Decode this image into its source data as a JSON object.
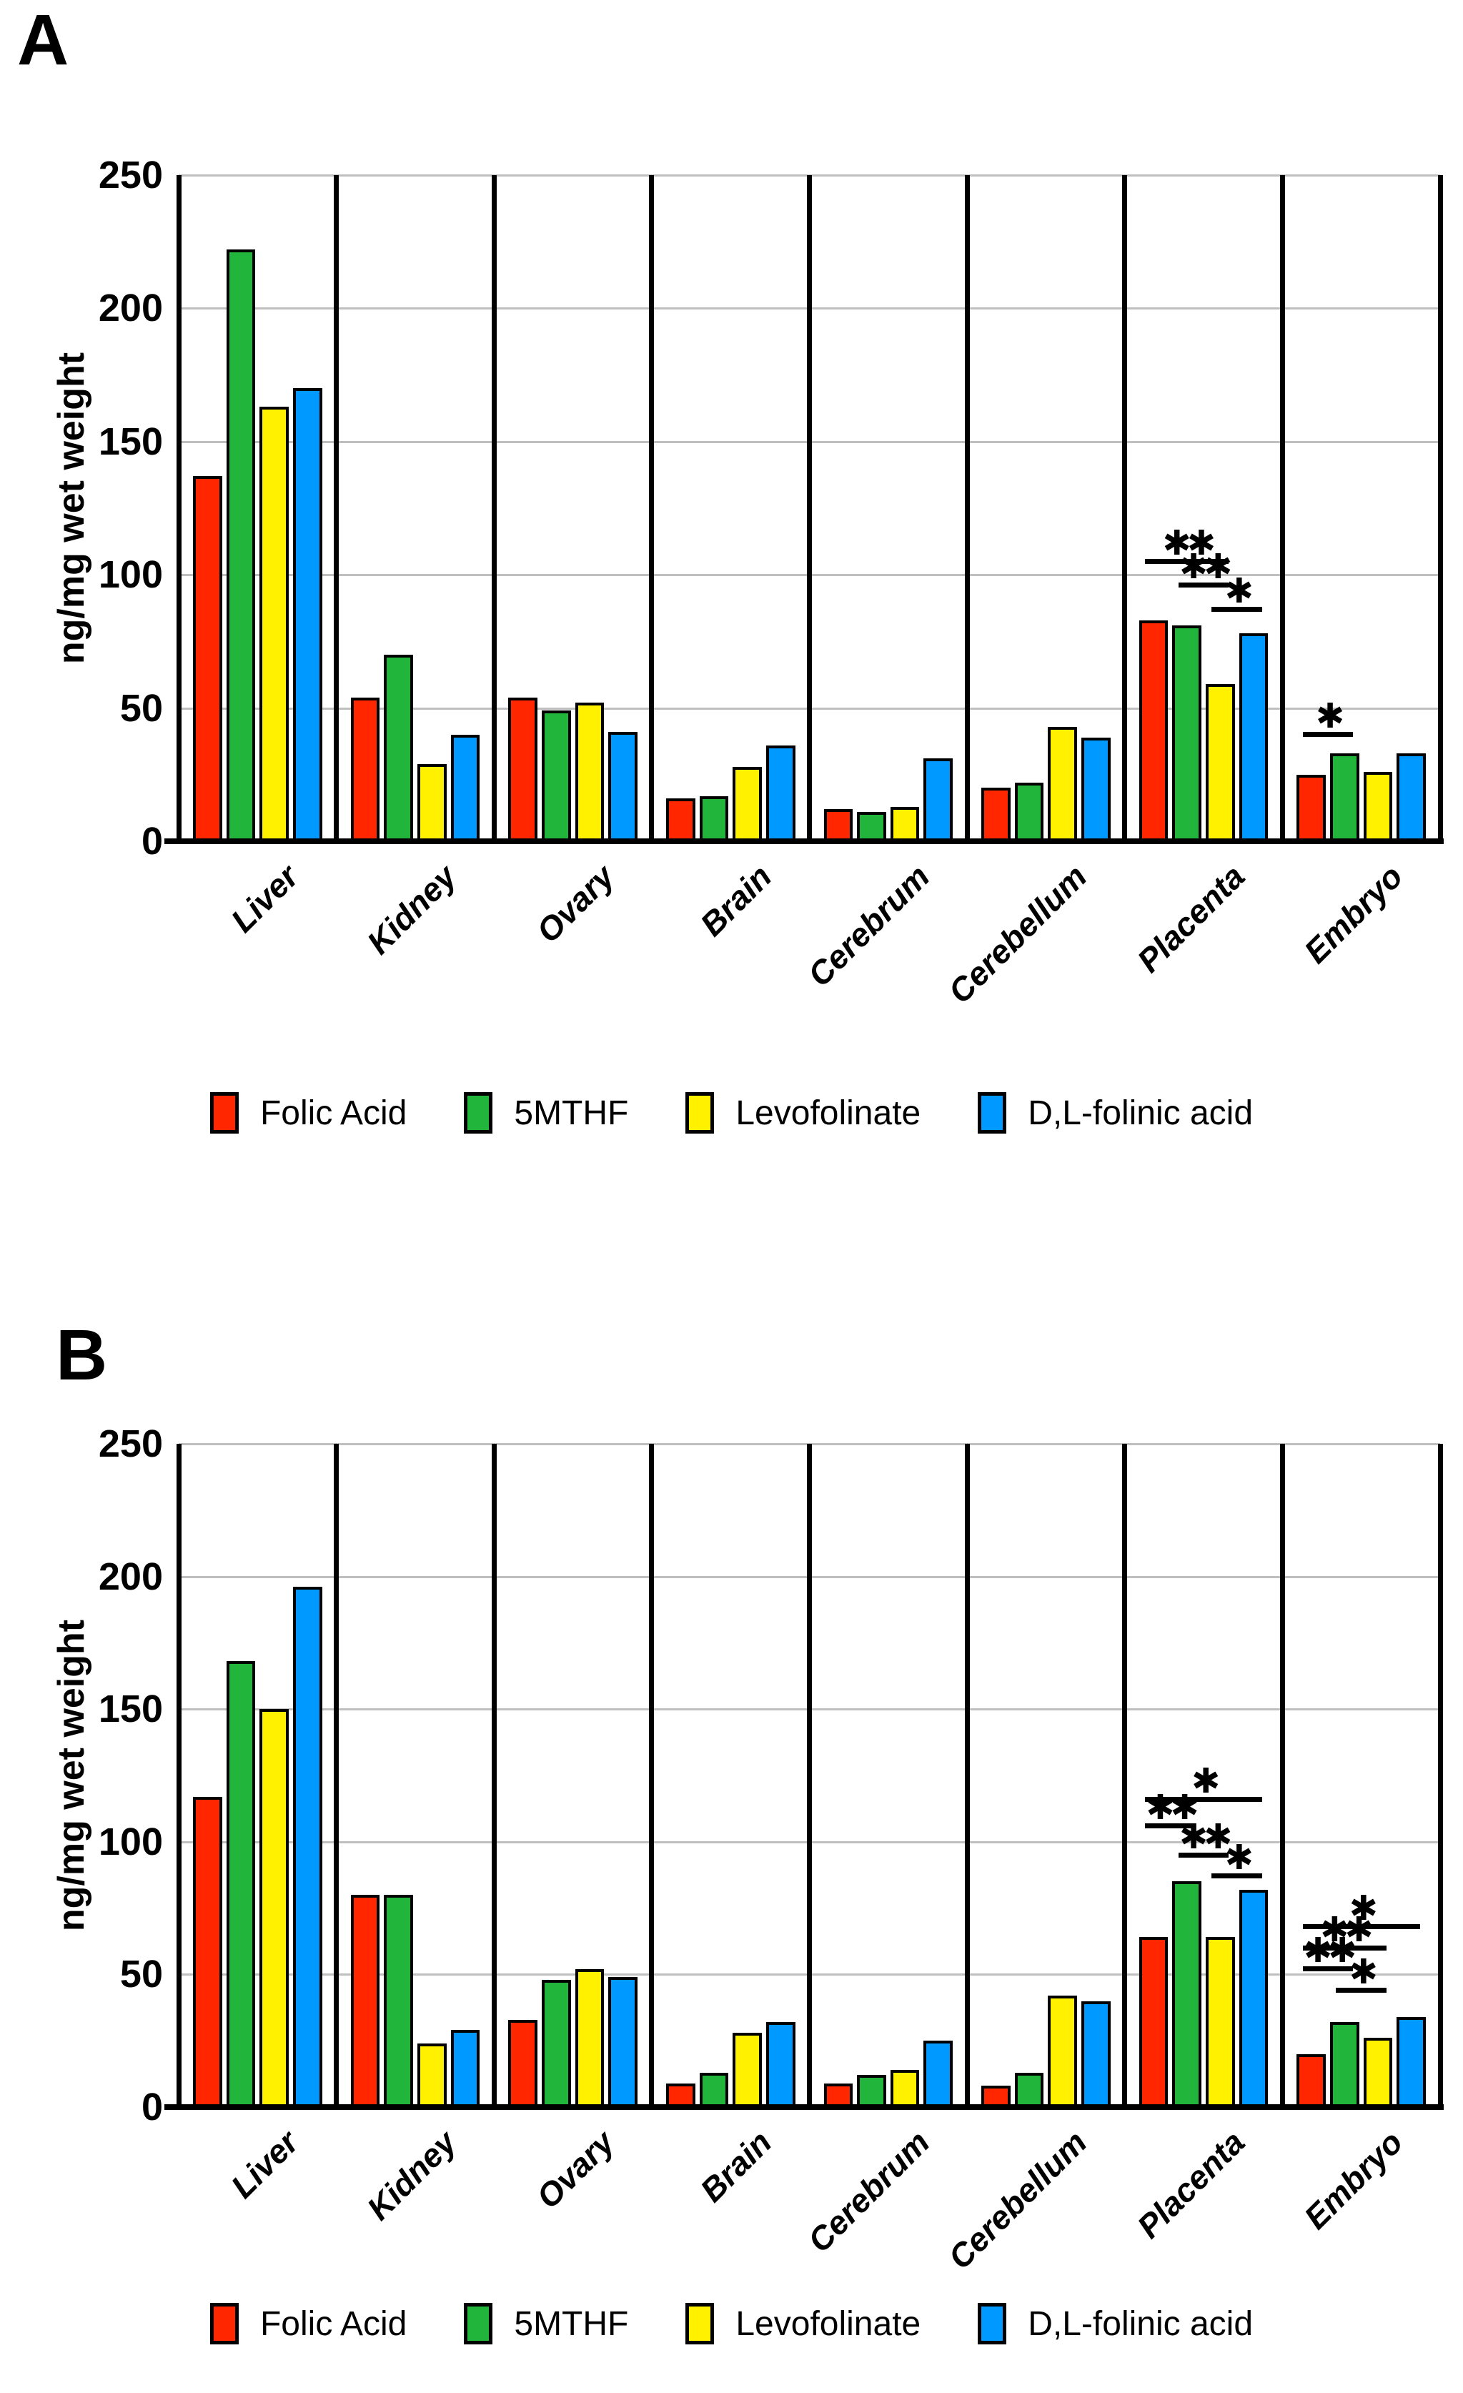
{
  "figure": {
    "background": "#ffffff",
    "grid_color": "#bfbfbf",
    "axis_color": "#000000",
    "star_glyph": "✱"
  },
  "chart_data": [
    {
      "type": "bar",
      "panel": "A",
      "ylabel": "ng/mg wet weight",
      "ylim": [
        0,
        250
      ],
      "yticks": [
        0,
        50,
        100,
        150,
        200,
        250
      ],
      "grid": true,
      "legend_position": "bottom",
      "categories": [
        "Liver",
        "Kidney",
        "Ovary",
        "Brain",
        "Cerebrum",
        "Cerebellum",
        "Placenta",
        "Embryo"
      ],
      "series": [
        {
          "name": "Folic Acid",
          "color": "#ff2600",
          "values": [
            137,
            54,
            54,
            16,
            12,
            20,
            83,
            25
          ]
        },
        {
          "name": "5MTHF",
          "color": "#22b53c",
          "values": [
            222,
            70,
            49,
            17,
            11,
            22,
            81,
            33
          ]
        },
        {
          "name": "Levofolinate",
          "color": "#fff100",
          "values": [
            163,
            29,
            52,
            28,
            13,
            43,
            59,
            26
          ]
        },
        {
          "name": "D,L-folinic acid",
          "color": "#0099ff",
          "values": [
            170,
            40,
            41,
            36,
            31,
            39,
            78,
            33
          ]
        }
      ],
      "significance": [
        {
          "category": "Placenta",
          "from": "Folic Acid",
          "to": "Levofolinate",
          "label": "**",
          "y": 106
        },
        {
          "category": "Placenta",
          "from": "5MTHF",
          "to": "Levofolinate",
          "label": "**",
          "y": 97
        },
        {
          "category": "Placenta",
          "from": "Levofolinate",
          "to": "D,L-folinic acid",
          "label": "*",
          "y": 88
        },
        {
          "category": "Embryo",
          "from": "Folic Acid",
          "to": "5MTHF",
          "label": "*",
          "y": 41
        }
      ]
    },
    {
      "type": "bar",
      "panel": "B",
      "ylabel": "ng/mg wet weight",
      "ylim": [
        0,
        250
      ],
      "yticks": [
        0,
        50,
        100,
        150,
        200,
        250
      ],
      "grid": true,
      "legend_position": "bottom",
      "categories": [
        "Liver",
        "Kidney",
        "Ovary",
        "Brain",
        "Cerebrum",
        "Cerebellum",
        "Placenta",
        "Embryo"
      ],
      "series": [
        {
          "name": "Folic Acid",
          "color": "#ff2600",
          "values": [
            117,
            80,
            33,
            9,
            9,
            8,
            64,
            20
          ]
        },
        {
          "name": "5MTHF",
          "color": "#22b53c",
          "values": [
            168,
            80,
            48,
            13,
            12,
            13,
            85,
            32
          ]
        },
        {
          "name": "Levofolinate",
          "color": "#fff100",
          "values": [
            150,
            24,
            52,
            28,
            14,
            42,
            64,
            26
          ]
        },
        {
          "name": "D,L-folinic acid",
          "color": "#0099ff",
          "values": [
            196,
            29,
            49,
            32,
            25,
            40,
            82,
            34
          ]
        }
      ],
      "significance": [
        {
          "category": "Placenta",
          "from": "Folic Acid",
          "to": "D,L-folinic acid",
          "label": "*",
          "y": 117
        },
        {
          "category": "Placenta",
          "from": "Folic Acid",
          "to": "5MTHF",
          "label": "**",
          "y": 107
        },
        {
          "category": "Placenta",
          "from": "5MTHF",
          "to": "Levofolinate",
          "label": "**",
          "y": 96
        },
        {
          "category": "Placenta",
          "from": "Levofolinate",
          "to": "D,L-folinic acid",
          "label": "*",
          "y": 88
        },
        {
          "category": "Embryo",
          "from": "Folic Acid",
          "to": "D,L-folinic acid",
          "label": "*",
          "y": 69
        },
        {
          "category": "Embryo",
          "from": "Folic Acid",
          "to": "Levofolinate",
          "label": "**",
          "y": 61
        },
        {
          "category": "Embryo",
          "from": "Folic Acid",
          "to": "5MTHF",
          "label": "**",
          "y": 53
        },
        {
          "category": "Embryo",
          "from": "5MTHF",
          "to": "Levofolinate",
          "label": "*",
          "y": 45
        }
      ]
    }
  ]
}
